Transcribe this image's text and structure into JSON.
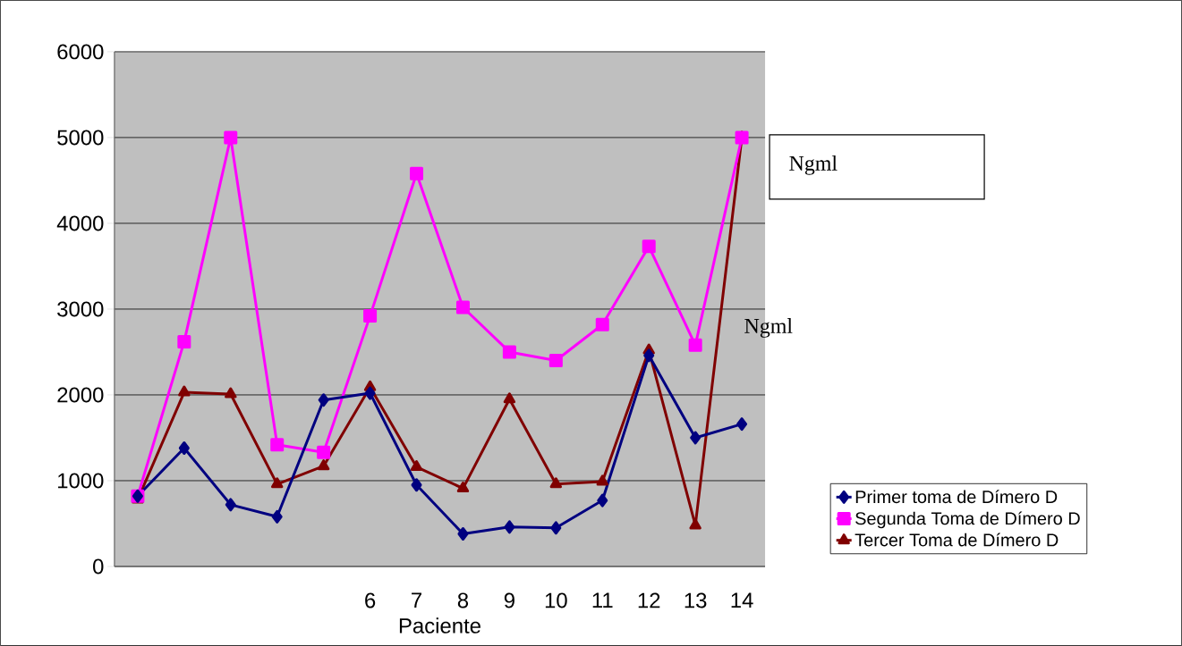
{
  "chart_data": {
    "type": "line",
    "xlabel": "Paciente",
    "categories": [
      null,
      null,
      null,
      null,
      null,
      "6",
      "7",
      "8",
      "9",
      "10",
      "11",
      "12",
      "13",
      "14"
    ],
    "series": [
      {
        "name": "Primer toma de Dímero D",
        "color": "#000080",
        "marker": "diamond",
        "values": [
          820,
          1380,
          720,
          580,
          1940,
          2020,
          950,
          380,
          460,
          450,
          770,
          2460,
          1500,
          1660
        ]
      },
      {
        "name": "Segunda Toma de Dímero D",
        "color": "#ff00ff",
        "marker": "square",
        "values": [
          820,
          2620,
          5000,
          1420,
          1330,
          2920,
          4580,
          3020,
          2500,
          2400,
          2820,
          3730,
          2580,
          5000
        ]
      },
      {
        "name": "Tercer Toma de Dímero D",
        "color": "#800000",
        "marker": "triangle",
        "values": [
          780,
          2030,
          2010,
          960,
          1170,
          2090,
          1160,
          910,
          1950,
          960,
          990,
          2520,
          480,
          5000
        ]
      }
    ],
    "ylim": [
      0,
      6000
    ],
    "yticks": [
      0,
      1000,
      2000,
      3000,
      4000,
      5000,
      6000
    ],
    "grid": "y",
    "legend": "right",
    "line_style": "solid",
    "annotations": [
      "Ngml",
      "Ngml"
    ]
  }
}
